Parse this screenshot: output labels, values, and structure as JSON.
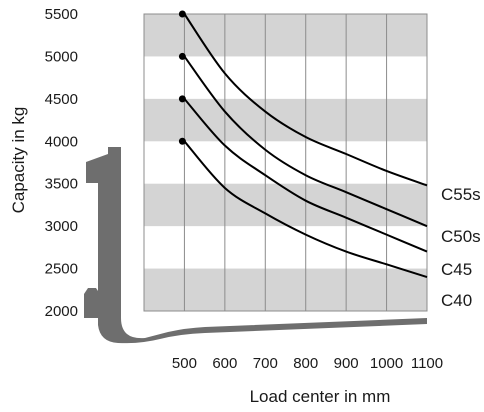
{
  "chart_data": {
    "type": "line",
    "xlabel": "Load center in mm",
    "ylabel": "Capacity in kg",
    "x_ticks": [
      500,
      600,
      700,
      800,
      900,
      1000,
      1100
    ],
    "y_ticks": [
      2000,
      2500,
      3000,
      3500,
      4000,
      4500,
      5000,
      5500
    ],
    "xlim": [
      400,
      1100
    ],
    "ylim": [
      2000,
      5500
    ],
    "x_visible_start": 490,
    "grid": true,
    "band_color": "#d4d4d4",
    "line_color": "#000000",
    "fork_color": "#6e6e6e",
    "series": [
      {
        "name": "C55s",
        "x": [
          400,
          500,
          600,
          700,
          800,
          900,
          1000,
          1100
        ],
        "y": [
          5500,
          5500,
          4800,
          4350,
          4050,
          3850,
          3650,
          3480
        ]
      },
      {
        "name": "C50s",
        "x": [
          400,
          500,
          600,
          700,
          800,
          900,
          1000,
          1100
        ],
        "y": [
          5000,
          5000,
          4350,
          3900,
          3600,
          3400,
          3200,
          3000
        ]
      },
      {
        "name": "C45",
        "x": [
          400,
          500,
          600,
          700,
          800,
          900,
          1000,
          1100
        ],
        "y": [
          4500,
          4500,
          3950,
          3600,
          3300,
          3100,
          2900,
          2700
        ]
      },
      {
        "name": "C40",
        "x": [
          400,
          500,
          600,
          700,
          800,
          900,
          1000,
          1100
        ],
        "y": [
          4000,
          4000,
          3450,
          3150,
          2900,
          2700,
          2550,
          2400
        ]
      }
    ]
  }
}
